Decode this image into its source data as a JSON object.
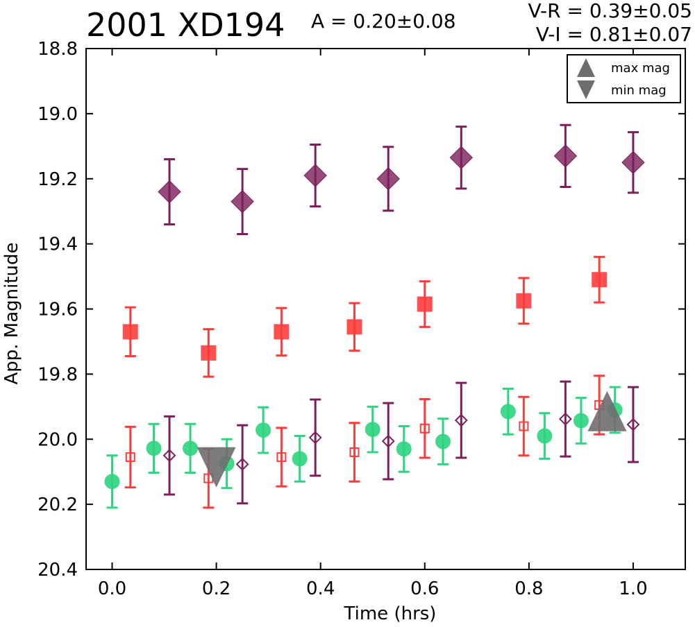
{
  "header": {
    "title": "2001 XD194",
    "amplitude": "A  = 0.20±0.08",
    "v_minus_r": "V-R = 0.39±0.05",
    "v_minus_i": "V-I  = 0.81±0.07"
  },
  "colors": {
    "v_filter": "#7b1f5a",
    "r_filter": "#ff3c3c",
    "g_filter": "#2ed47f",
    "extreme_marker": "#6e6e6e"
  },
  "chart_data": {
    "type": "scatter",
    "title": "2001 XD194",
    "xlabel": "Time (hrs)",
    "ylabel": "App. Magnitude",
    "xlim": [
      -0.05,
      1.1
    ],
    "ylim": [
      20.4,
      18.8
    ],
    "y_inverted": true,
    "x_ticks": [
      "0.0",
      "0.2",
      "0.4",
      "0.6",
      "0.8",
      "1.0"
    ],
    "y_ticks": [
      "18.8",
      "19.0",
      "19.2",
      "19.4",
      "19.6",
      "19.8",
      "20.0",
      "20.2",
      "20.4"
    ],
    "legend": {
      "placement": "top-right",
      "entries": [
        "max mag",
        "min mag"
      ]
    },
    "series": [
      {
        "marker": "diamond-filled",
        "color": "#7b1f5a",
        "x": [
          0.11,
          0.25,
          0.39,
          0.53,
          0.67,
          0.87,
          1.0
        ],
        "y": [
          19.24,
          19.27,
          19.19,
          19.2,
          19.135,
          19.13,
          19.15
        ],
        "err": [
          0.1,
          0.1,
          0.095,
          0.098,
          0.095,
          0.095,
          0.093
        ]
      },
      {
        "marker": "square-filled",
        "color": "#ff3c3c",
        "x": [
          0.035,
          0.185,
          0.325,
          0.465,
          0.6,
          0.79,
          0.935
        ],
        "y": [
          19.67,
          19.735,
          19.67,
          19.655,
          19.585,
          19.575,
          19.51
        ],
        "err": [
          0.075,
          0.073,
          0.073,
          0.073,
          0.07,
          0.07,
          0.07
        ]
      },
      {
        "marker": "circle-filled",
        "color": "#2ed47f",
        "x": [
          0.0,
          0.08,
          0.15,
          0.22,
          0.29,
          0.36,
          0.5,
          0.56,
          0.635,
          0.76,
          0.83,
          0.9,
          0.965
        ],
        "y": [
          20.13,
          20.028,
          20.028,
          20.075,
          19.972,
          20.06,
          19.97,
          20.03,
          20.007,
          19.915,
          19.99,
          19.943,
          19.91
        ],
        "err": [
          0.08,
          0.075,
          0.075,
          0.075,
          0.07,
          0.07,
          0.07,
          0.07,
          0.07,
          0.07,
          0.07,
          0.07,
          0.07
        ]
      },
      {
        "marker": "square-open",
        "color": "#ff3c3c",
        "x": [
          0.035,
          0.185,
          0.325,
          0.465,
          0.6,
          0.79,
          0.935
        ],
        "y": [
          20.055,
          20.12,
          20.055,
          20.04,
          19.967,
          19.96,
          19.895
        ],
        "err": [
          0.093,
          0.09,
          0.09,
          0.09,
          0.09,
          0.09,
          0.09
        ]
      },
      {
        "marker": "diamond-open",
        "color": "#7b1f5a",
        "x": [
          0.11,
          0.25,
          0.39,
          0.53,
          0.67,
          0.87,
          1.0
        ],
        "y": [
          20.05,
          20.077,
          19.995,
          20.006,
          19.942,
          19.938,
          19.955
        ],
        "err": [
          0.12,
          0.12,
          0.117,
          0.117,
          0.115,
          0.115,
          0.115
        ]
      },
      {
        "marker": "triangle-down",
        "color": "#6e6e6e",
        "x": [
          0.2
        ],
        "y": [
          20.08
        ]
      },
      {
        "marker": "triangle-up",
        "color": "#6e6e6e",
        "x": [
          0.95
        ],
        "y": [
          19.92
        ]
      }
    ]
  }
}
